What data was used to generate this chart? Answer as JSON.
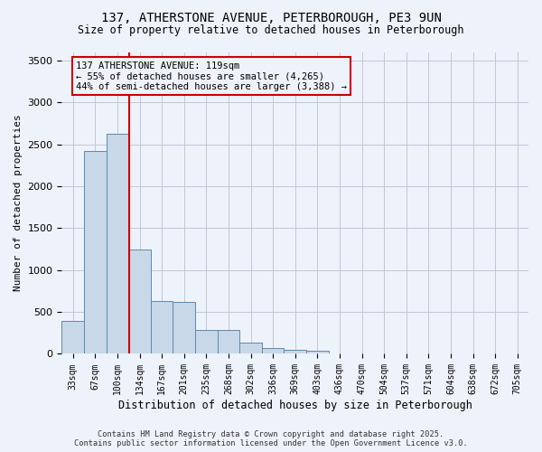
{
  "title_line1": "137, ATHERSTONE AVENUE, PETERBOROUGH, PE3 9UN",
  "title_line2": "Size of property relative to detached houses in Peterborough",
  "xlabel": "Distribution of detached houses by size in Peterborough",
  "ylabel": "Number of detached properties",
  "footer_line1": "Contains HM Land Registry data © Crown copyright and database right 2025.",
  "footer_line2": "Contains public sector information licensed under the Open Government Licence v3.0.",
  "annotation_line1": "137 ATHERSTONE AVENUE: 119sqm",
  "annotation_line2": "← 55% of detached houses are smaller (4,265)",
  "annotation_line3": "44% of semi-detached houses are larger (3,388) →",
  "bar_color": "#c8d8e8",
  "bar_edge_color": "#5a8ab0",
  "vline_color": "#cc0000",
  "annotation_box_color": "#cc0000",
  "background_color": "#eef2fa",
  "grid_color": "#c0c8d8",
  "tick_labels": [
    "33sqm",
    "67sqm",
    "100sqm",
    "134sqm",
    "167sqm",
    "201sqm",
    "235sqm",
    "268sqm",
    "302sqm",
    "336sqm",
    "369sqm",
    "403sqm",
    "436sqm",
    "470sqm",
    "504sqm",
    "537sqm",
    "571sqm",
    "604sqm",
    "638sqm",
    "672sqm",
    "705sqm"
  ],
  "values": [
    390,
    2420,
    2620,
    1240,
    630,
    620,
    290,
    290,
    130,
    70,
    50,
    40,
    0,
    0,
    0,
    0,
    0,
    0,
    0,
    0,
    0
  ],
  "vline_position": 2.55,
  "ylim": [
    0,
    3600
  ],
  "yticks": [
    0,
    500,
    1000,
    1500,
    2000,
    2500,
    3000,
    3500
  ]
}
